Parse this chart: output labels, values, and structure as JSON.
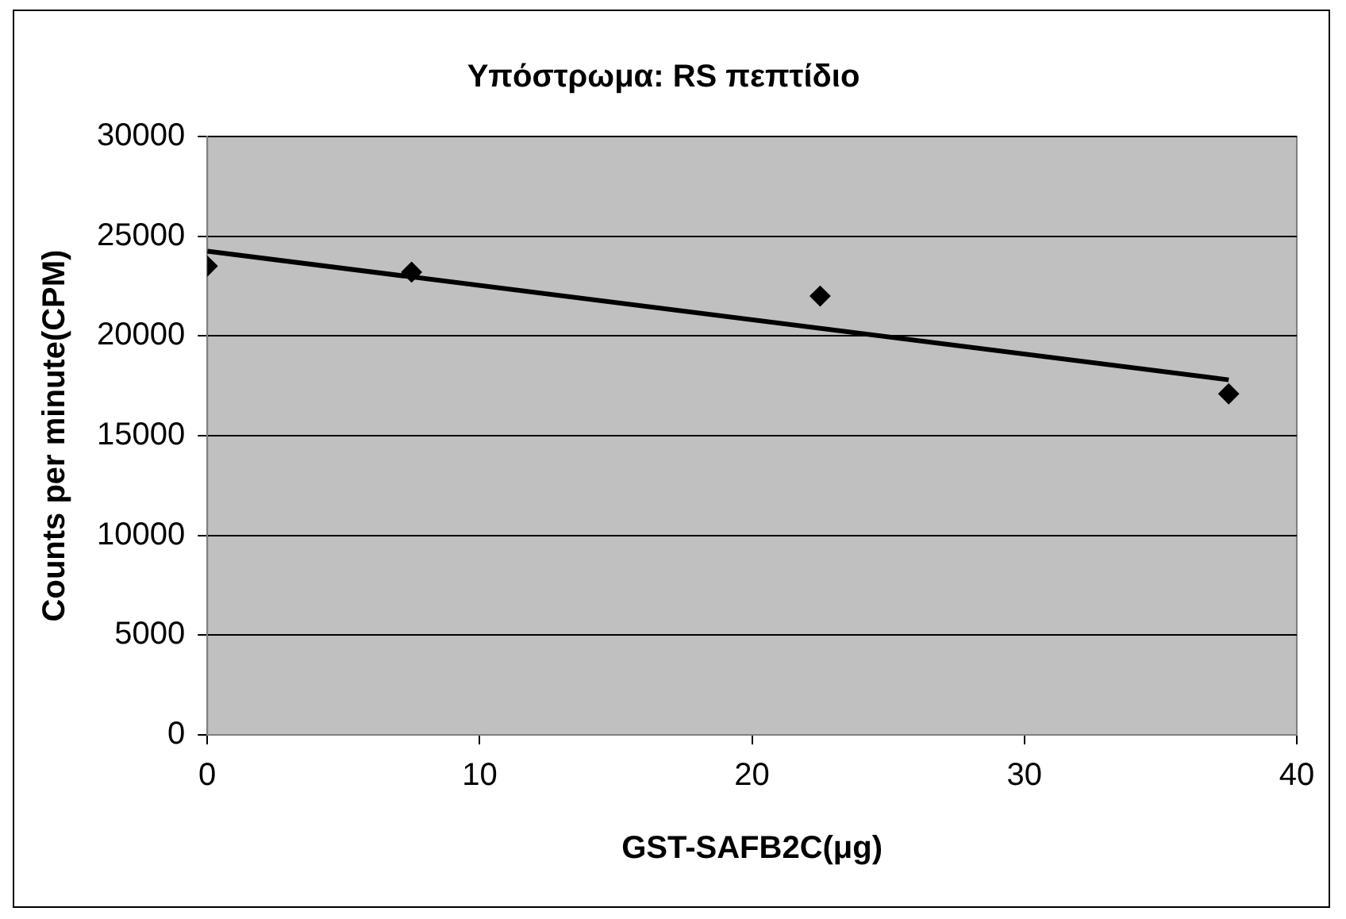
{
  "chart_data": {
    "type": "scatter",
    "title": "Υπόστρωμα: RS πεπτίδιο",
    "xlabel": "GST-SAFB2C(μg)",
    "ylabel": "Counts per minute(CPM)",
    "xlim": [
      0,
      40
    ],
    "xticks": [
      0,
      10,
      20,
      30,
      40
    ],
    "ylim": [
      0,
      30000
    ],
    "yticks": [
      0,
      5000,
      10000,
      15000,
      20000,
      25000,
      30000
    ],
    "grid": "y",
    "legend": false,
    "marker": "diamond",
    "series": [
      {
        "color": "#000000",
        "x": [
          0,
          7.5,
          22.5,
          37.5
        ],
        "values": [
          23500,
          23200,
          22000,
          17100
        ]
      },
      {
        "type": "line",
        "color": "#000000",
        "x": [
          0,
          37.5
        ],
        "values": [
          24250,
          17800
        ],
        "marker": "none",
        "line_style": "solid"
      }
    ]
  }
}
